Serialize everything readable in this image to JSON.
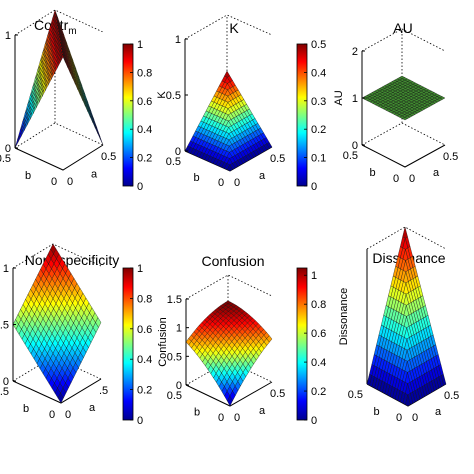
{
  "chart_data": [
    {
      "type": "surface",
      "title": "Contr",
      "title_subscript": "m",
      "xlabel": "a",
      "ylabel": "b",
      "zlabel": "",
      "x_range": [
        0,
        0.5
      ],
      "y_range": [
        0,
        0.5
      ],
      "zlim": [
        0,
        1
      ],
      "z_ticks": [
        "0",
        "1"
      ],
      "x_tick_labels": [
        "0",
        "0.5"
      ],
      "y_tick_labels": [
        "0",
        "0.5"
      ],
      "surface": "1 - 2*|a - b|",
      "corner_values": {
        "a0_b0": 1,
        "a05_b0": 0,
        "a0_b05": 0,
        "a05_b05": 1
      },
      "colormap": "jet",
      "colorbar": {
        "ticks": [
          "0",
          "0.2",
          "0.4",
          "0.6",
          "0.8",
          "1"
        ],
        "range": [
          0,
          1
        ]
      }
    },
    {
      "type": "surface",
      "title": "K",
      "xlabel": "a",
      "ylabel": "b",
      "zlabel": "K",
      "x_range": [
        0,
        0.5
      ],
      "y_range": [
        0,
        0.5
      ],
      "zlim": [
        0,
        1
      ],
      "z_ticks": [
        "0",
        "0.5",
        "1"
      ],
      "x_tick_labels": [
        "0",
        "0.5"
      ],
      "y_tick_labels": [
        "0",
        "0.5"
      ],
      "surface": "min(a, b)",
      "corner_values": {
        "a0_b0": 0,
        "a05_b0": 0,
        "a0_b05": 0,
        "a05_b05": 0.5
      },
      "colormap": "jet",
      "colorbar": {
        "ticks": [
          "0",
          "0.1",
          "0.2",
          "0.3",
          "0.4",
          "0.5"
        ],
        "range": [
          0,
          0.5
        ]
      }
    },
    {
      "type": "surface",
      "title": "AU",
      "xlabel": "a",
      "ylabel": "b",
      "zlabel": "AU",
      "x_range": [
        0,
        0.5
      ],
      "y_range": [
        0,
        0.5
      ],
      "zlim": [
        0,
        2
      ],
      "z_ticks": [
        "0",
        "1",
        "2"
      ],
      "x_tick_labels": [
        "0",
        "0.5"
      ],
      "y_tick_labels": [
        "0",
        "0.5"
      ],
      "surface": "constant 1",
      "corner_values": {
        "a0_b0": 1,
        "a05_b0": 1,
        "a0_b05": 1,
        "a05_b05": 1
      },
      "colormap": "flat green"
    },
    {
      "type": "surface",
      "title": "Non−specificity",
      "xlabel": "a",
      "ylabel": "b",
      "zlabel": "",
      "x_range": [
        0,
        0.5
      ],
      "y_range": [
        0,
        0.5
      ],
      "zlim": [
        0,
        1
      ],
      "z_ticks": [
        "0",
        ".5",
        "1"
      ],
      "x_tick_labels": [
        "0",
        ".5"
      ],
      "y_tick_labels": [
        "0",
        "0.5"
      ],
      "surface": "a + b",
      "corner_values": {
        "a0_b0": 0,
        "a05_b0": 0.5,
        "a0_b05": 0.5,
        "a05_b05": 1
      },
      "colormap": "jet",
      "colorbar": {
        "ticks": [
          "0",
          "0.2",
          "0.4",
          "0.6",
          "0.8",
          "1"
        ],
        "range": [
          0,
          1
        ]
      }
    },
    {
      "type": "surface",
      "title": "Confusion",
      "xlabel": "a",
      "ylabel": "b",
      "zlabel": "Confusion",
      "x_range": [
        0,
        0.5
      ],
      "y_range": [
        0,
        0.5
      ],
      "zlim": [
        0,
        1.5
      ],
      "z_ticks": [
        "0",
        "0.5",
        "1",
        "1.5"
      ],
      "x_tick_labels": [
        "0",
        "0.5"
      ],
      "y_tick_labels": [
        "0",
        "0.5"
      ],
      "surface": "1.05 - 0.3*(1-2a)^2 - 0.3*(1-2b)^2 - 0.45*(1-2a)*(1-2b)",
      "corner_values": {
        "a0_b0": 0,
        "a05_b0": 0.75,
        "a0_b05": 0.75,
        "a05_b05": 1.05
      },
      "colormap": "jet",
      "colorbar": {
        "ticks": [
          "0",
          "0.2",
          "0.4",
          "0.6",
          "0.8",
          "1"
        ],
        "range": [
          0,
          1.05
        ]
      }
    },
    {
      "type": "surface",
      "title": "Dissonance",
      "xlabel": "a",
      "ylabel": "b",
      "zlabel": "Dissonance",
      "x_range": [
        0,
        0.5
      ],
      "y_range": [
        0,
        0.5
      ],
      "zlim": [
        0,
        1
      ],
      "x_tick_labels": [
        "0",
        "0.5"
      ],
      "y_tick_labels": [
        "0",
        "0.5"
      ],
      "surface": "2*min(a, b)",
      "corner_values": {
        "a0_b0": 0,
        "a05_b0": 0,
        "a0_b05": 0,
        "a05_b05": 1
      },
      "colormap": "jet"
    }
  ]
}
